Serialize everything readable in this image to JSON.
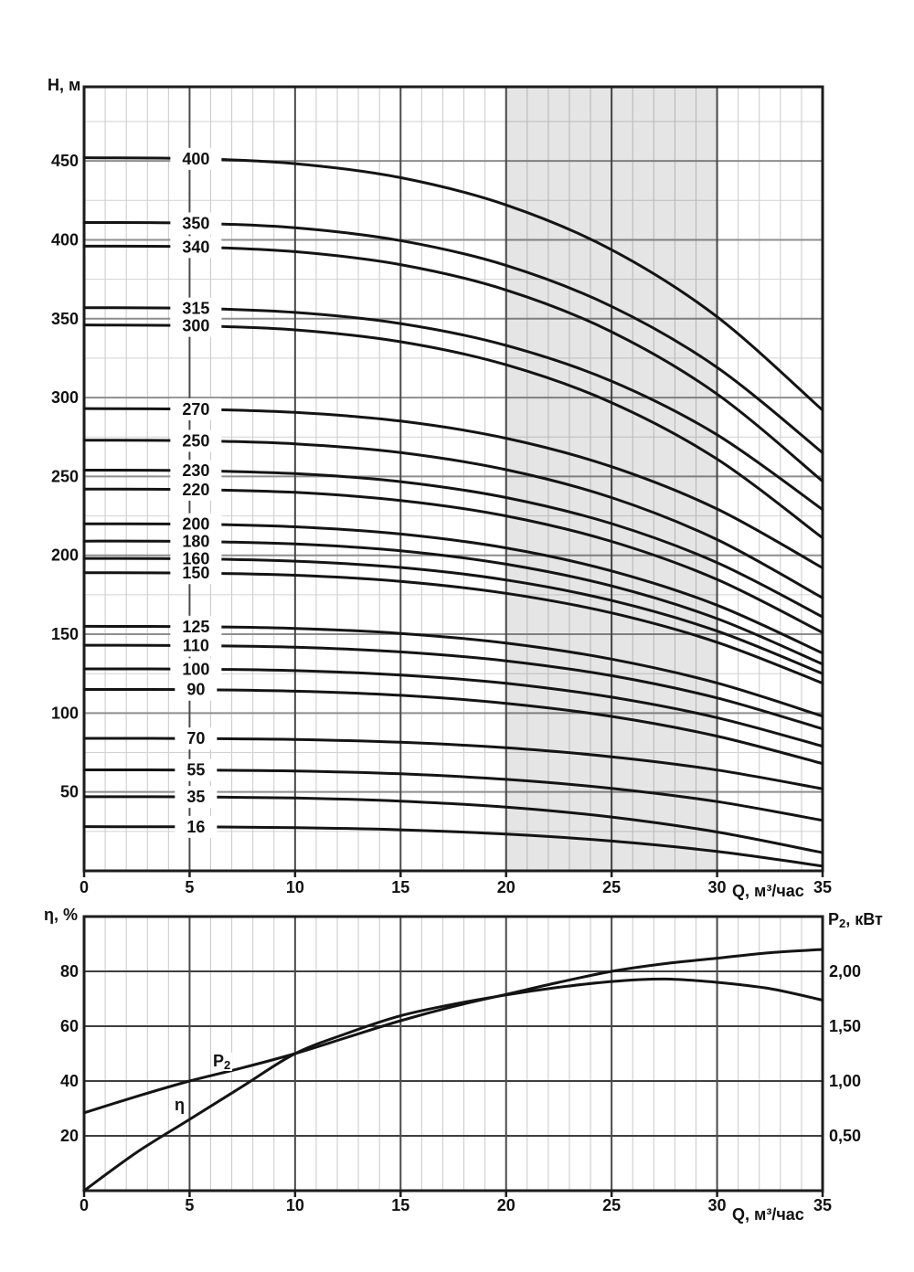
{
  "figure": {
    "background": "#ffffff",
    "axis_titles": {
      "head_y": "Н, м",
      "flow_x_top": "Q, м³/час",
      "efficiency_y": "η, %",
      "power_y_base": "P",
      "power_y_sub": "2",
      "power_y_rest": ", кВт",
      "flow_x_bottom": "Q, м³/час"
    },
    "curve_inline_labels": {
      "power_base": "P",
      "power_sub": "2",
      "efficiency": "η"
    },
    "colors": {
      "curve": "#141414",
      "border": "#1c1c1c",
      "grid_minor": "#c9c9c9",
      "grid_major_h_top": "#8e8e8e",
      "grid_major_v": "#4a4a4a",
      "grid_major_bottom": "#3f3f3f",
      "shade": "rgba(0,0,0,0.10)",
      "text": "#111111"
    }
  },
  "chart_data": [
    {
      "id": "head_flow_chart",
      "type": "line",
      "title": "",
      "xlabel": "Q, м³/час",
      "ylabel": "Н, м",
      "xlim": [
        0,
        35
      ],
      "ylim": [
        0,
        497
      ],
      "x_major_ticks": [
        0,
        5,
        10,
        15,
        20,
        25,
        30,
        35
      ],
      "x_minor_step": 1,
      "y_major_ticks": [
        50,
        100,
        150,
        200,
        250,
        300,
        350,
        400,
        450
      ],
      "y_minor_step": 25,
      "grid": true,
      "legend": "none",
      "shaded_band_q": [
        20,
        30
      ],
      "curve_label_q": 5.3,
      "q_samples": [
        0,
        5,
        10,
        15,
        20,
        25,
        30,
        35
      ],
      "series": [
        {
          "label": "400",
          "H": [
            452,
            451.5,
            448.3,
            439.4,
            422.1,
            393.7,
            351.2,
            292
          ]
        },
        {
          "label": "350",
          "H": [
            411,
            410.6,
            407.6,
            399.5,
            383.8,
            357.8,
            319.1,
            265
          ]
        },
        {
          "label": "340",
          "H": [
            396,
            395.6,
            392.5,
            384.3,
            368.2,
            341.7,
            302.2,
            247
          ]
        },
        {
          "label": "315",
          "H": [
            357,
            356.6,
            354.0,
            346.9,
            333.1,
            310.4,
            276.4,
            229
          ]
        },
        {
          "label": "300",
          "H": [
            346,
            345.6,
            342.9,
            335.4,
            320.8,
            296.8,
            261.0,
            211
          ]
        },
        {
          "label": "270",
          "H": [
            293,
            292.7,
            290.6,
            285.1,
            274.2,
            256.2,
            229.4,
            192
          ]
        },
        {
          "label": "250",
          "H": [
            273,
            272.7,
            270.7,
            265.1,
            254.3,
            236.6,
            210.0,
            173
          ]
        },
        {
          "label": "230",
          "H": [
            254,
            253.7,
            251.8,
            246.7,
            236.6,
            220.1,
            195.4,
            161
          ]
        },
        {
          "label": "220",
          "H": [
            242,
            241.7,
            239.9,
            234.8,
            225.0,
            208.8,
            184.7,
            151
          ]
        },
        {
          "label": "200",
          "H": [
            220,
            219.8,
            218.1,
            213.5,
            204.7,
            190.1,
            168.4,
            138
          ]
        },
        {
          "label": "180",
          "H": [
            209,
            208.8,
            207.2,
            202.9,
            194.4,
            180.6,
            159.9,
            131
          ]
        },
        {
          "label": "160",
          "H": [
            198,
            197.8,
            196.3,
            192.3,
            184.4,
            171.4,
            152.0,
            125
          ]
        },
        {
          "label": "150",
          "H": [
            189,
            188.8,
            187.4,
            183.5,
            175.9,
            163.5,
            144.9,
            119
          ]
        },
        {
          "label": "125",
          "H": [
            155,
            154.8,
            153.7,
            150.5,
            144.4,
            134.2,
            119.1,
            98
          ]
        },
        {
          "label": "110",
          "H": [
            143,
            142.8,
            141.8,
            138.8,
            133.1,
            123.7,
            109.6,
            90
          ]
        },
        {
          "label": "100",
          "H": [
            128,
            127.9,
            126.9,
            124.1,
            118.9,
            110.1,
            97.1,
            79
          ]
        },
        {
          "label": "90",
          "H": [
            115,
            114.9,
            113.9,
            111.3,
            106.2,
            97.9,
            85.4,
            68
          ]
        },
        {
          "label": "70",
          "H": [
            84,
            83.9,
            83.3,
            81.5,
            78.0,
            72.3,
            63.9,
            52
          ]
        },
        {
          "label": "55",
          "H": [
            64,
            63.9,
            63.3,
            61.5,
            58.0,
            52.3,
            43.9,
            32
          ]
        },
        {
          "label": "35",
          "H": [
            47,
            46.9,
            46.2,
            44.2,
            40.4,
            34.1,
            24.6,
            11.5
          ]
        },
        {
          "label": "16",
          "H": [
            28,
            27.9,
            27.4,
            26.0,
            23.3,
            18.9,
            12.3,
            3
          ]
        }
      ]
    },
    {
      "id": "efficiency_power_chart",
      "type": "line",
      "title": "",
      "xlabel": "Q, м³/час",
      "ylabel_left": "η, %",
      "ylabel_right": "P₂, кВт",
      "xlim": [
        0,
        35
      ],
      "ylim_left": [
        0,
        100
      ],
      "ylim_right": [
        0,
        2.5
      ],
      "x_major_ticks": [
        0,
        5,
        10,
        15,
        20,
        25,
        30,
        35
      ],
      "x_minor_step": 1,
      "y_left_ticks": [
        20,
        40,
        60,
        80
      ],
      "y_right_ticks": [
        {
          "value": 0.5,
          "label": "0,50"
        },
        {
          "value": 1.0,
          "label": "1,00"
        },
        {
          "value": 1.5,
          "label": "1,50"
        },
        {
          "value": 2.0,
          "label": "2,00"
        }
      ],
      "grid": true,
      "q_samples": [
        0,
        2.5,
        5,
        7.5,
        10,
        12.5,
        15,
        17.5,
        20,
        22.5,
        25,
        27.5,
        30,
        32.5,
        35
      ],
      "series": [
        {
          "name": "η",
          "unit": "%",
          "axis": "left",
          "values": [
            0,
            14,
            26,
            38,
            50,
            57.5,
            63.8,
            68,
            71.4,
            74.2,
            76.3,
            77.2,
            76,
            73.7,
            69.5
          ]
        },
        {
          "name": "P₂",
          "unit": "кВт",
          "axis": "right",
          "values": [
            0.71,
            0.86,
            1.0,
            1.12,
            1.25,
            1.4,
            1.55,
            1.68,
            1.79,
            1.9,
            2.0,
            2.07,
            2.12,
            2.17,
            2.2
          ]
        }
      ]
    }
  ]
}
